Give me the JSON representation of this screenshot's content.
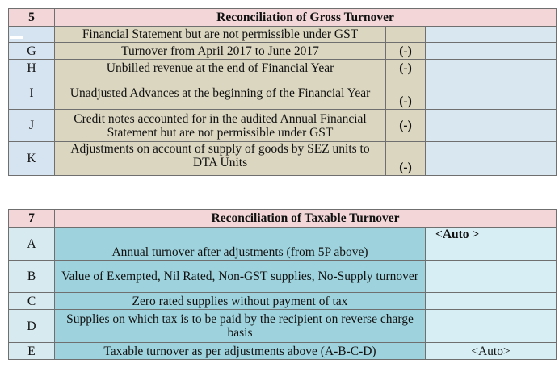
{
  "gross": {
    "number": "5",
    "title": "Reconciliation of Gross Turnover",
    "rows": [
      {
        "code": "",
        "desc": "Financial Statement but are not permissible under GST",
        "sign": "",
        "value": ""
      },
      {
        "code": "G",
        "desc": "Turnover from April 2017 to June 2017",
        "sign": "(-)",
        "value": ""
      },
      {
        "code": "H",
        "desc": "Unbilled revenue at the end of Financial Year",
        "sign": "(-)",
        "value": ""
      },
      {
        "code": "I",
        "desc": "Unadjusted Advances at the beginning of the Financial Year",
        "sign": "(-)",
        "value": ""
      },
      {
        "code": "J",
        "desc": "Credit notes accounted for in the audited Annual Financial Statement but are not permissible under GST",
        "sign": "(-)",
        "value": ""
      },
      {
        "code": "K",
        "desc": "Adjustments on account of supply of goods by SEZ units to DTA Units",
        "sign": "(-)",
        "value": ""
      }
    ]
  },
  "taxable": {
    "number": "7",
    "title": "Reconciliation of Taxable Turnover",
    "rows": [
      {
        "code": "A",
        "desc": "Annual turnover after adjustments (from 5P above)",
        "value": "<Auto >"
      },
      {
        "code": "B",
        "desc": "Value of Exempted, Nil Rated, Non-GST supplies, No-Supply turnover",
        "value": ""
      },
      {
        "code": "C",
        "desc": "Zero rated supplies without payment of tax",
        "value": ""
      },
      {
        "code": "D",
        "desc": "Supplies on which tax is to be paid by the recipient on reverse charge basis",
        "value": ""
      },
      {
        "code": "E",
        "desc": "Taxable turnover as per adjustments above (A-B-C-D)",
        "value": "<Auto>"
      }
    ]
  }
}
